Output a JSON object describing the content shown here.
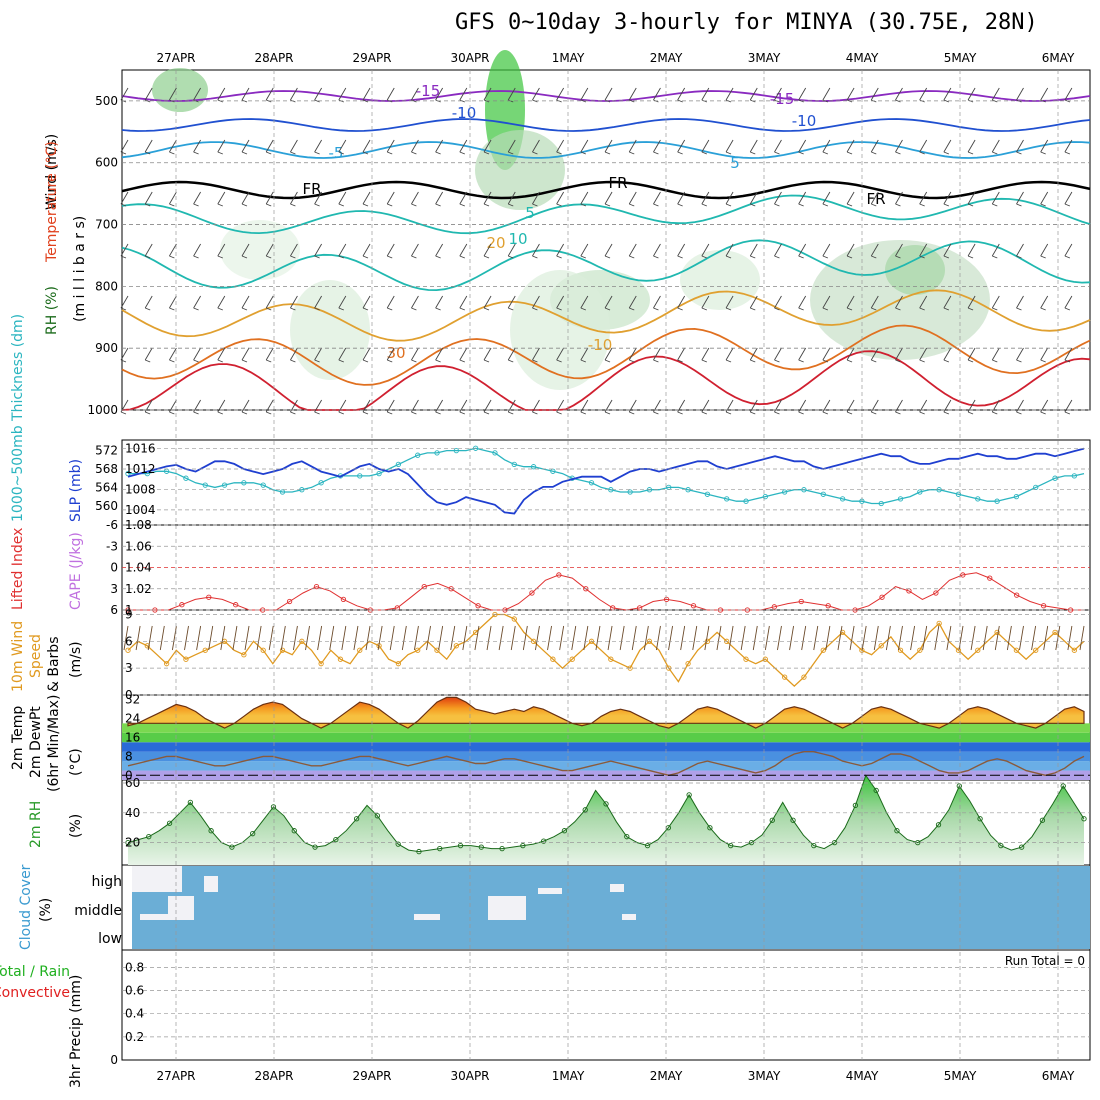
{
  "title": "GFS 0~10day 3-hourly for MINYA (30.75E, 28N)",
  "dates": [
    "27APR",
    "28APR",
    "29APR",
    "30APR",
    "1MAY",
    "2MAY",
    "3MAY",
    "4MAY",
    "5MAY",
    "6MAY"
  ],
  "colors": {
    "slp": "#1f3fd0",
    "thickness": "#2bb5c0",
    "lifted": "#e03030",
    "cape": "#c070e0",
    "wind": "#e09a20",
    "rh2m": "#2a9a2a",
    "cloud": "#6baed6",
    "precip_total": "#20b020",
    "precip_conv": "#e02020"
  },
  "labels": {
    "panel1_wind": "Wind (m/s)",
    "panel1_temp": "Temperature (°C)",
    "panel1_rh": "RH (%)",
    "panel1_mb": "(m i l l i b a r s)",
    "thickness": "1000~500mb Thickness (dm)",
    "slp": "SLP (mb)",
    "lifted": "Lifted Index",
    "cape": "CAPE (J/kg)",
    "wind10": "10m Wind",
    "speed": "Speed",
    "barbs": "& Barbs",
    "ms": "(m/s)",
    "temp2m": "2m Temp",
    "dewpt": "2m DewPt",
    "minmax": "(6hr Min/Max)",
    "degc": "(°C)",
    "rh2m": "2m RH",
    "pct": "(%)",
    "cloud": "Cloud Cover",
    "cloud_pct": "(%)",
    "cloud_high": "high",
    "cloud_middle": "middle",
    "cloud_low": "low",
    "precip": "3hr Precip (mm)",
    "total_rain": "Total / Rain",
    "convective": "Convective",
    "run_total": "Run Total = 0"
  },
  "chart_data": [
    {
      "type": "contour",
      "name": "upper-air",
      "ylabel": "millibars",
      "yticks": [
        500,
        600,
        700,
        800,
        900,
        1000
      ],
      "contour_labels": [
        "-15",
        "-10",
        "-5",
        "FR",
        "5",
        "10",
        "20",
        "30",
        "-15",
        "-10",
        "5",
        "FR",
        "FR",
        "-10",
        "5",
        "20"
      ]
    },
    {
      "type": "line",
      "name": "slp-thickness",
      "slp_ticks": [
        1004,
        1008,
        1012,
        1016
      ],
      "thickness_ticks": [
        560,
        564,
        568,
        572
      ],
      "slp": [
        1010.5,
        1011,
        1011.5,
        1012,
        1012.5,
        1012.8,
        1012,
        1011.5,
        1012.5,
        1013.5,
        1013.5,
        1013,
        1012,
        1011.5,
        1011,
        1011.5,
        1012,
        1013,
        1013.5,
        1012.5,
        1011.5,
        1011,
        1010.5,
        1011.5,
        1012.5,
        1013,
        1012,
        1011.5,
        1012,
        1011,
        1009,
        1007,
        1005.5,
        1005,
        1005.5,
        1006.5,
        1006,
        1005.5,
        1005,
        1003.5,
        1003.3,
        1006,
        1007.5,
        1008.5,
        1008.5,
        1009.5,
        1010,
        1010.5,
        1010.5,
        1010.5,
        1009.5,
        1010.5,
        1011.5,
        1012,
        1012,
        1011.5,
        1012,
        1012.5,
        1013,
        1013.5,
        1013.5,
        1012.5,
        1012,
        1012.5,
        1013,
        1013.5,
        1014,
        1014.5,
        1014,
        1013.5,
        1013.5,
        1012.5,
        1012,
        1012.5,
        1013,
        1013.5,
        1014,
        1014.5,
        1015,
        1014.5,
        1014.5,
        1013.5,
        1013,
        1013,
        1013.5,
        1014,
        1014,
        1014.5,
        1015,
        1014.5,
        1014.5,
        1014,
        1014,
        1014.5,
        1015,
        1015,
        1014.5,
        1015,
        1015.5,
        1016
      ],
      "thickness": [
        567,
        567,
        567,
        567.5,
        567.5,
        567,
        566,
        565,
        564.5,
        564,
        564.5,
        565,
        565,
        565,
        564.5,
        563.5,
        563,
        563,
        563.5,
        564,
        565,
        566,
        566.5,
        566.5,
        566.5,
        566.5,
        567,
        568,
        569,
        570,
        571,
        571.5,
        571.5,
        572,
        572,
        572,
        572.5,
        572,
        571.5,
        570,
        569,
        568.5,
        568.5,
        568,
        567.5,
        567,
        566,
        565.5,
        565,
        564,
        563.5,
        563,
        563,
        563,
        563.5,
        563.5,
        564,
        564,
        563.5,
        563,
        562.5,
        562,
        561.5,
        561,
        561,
        561.5,
        562,
        562.5,
        563,
        563.5,
        563.5,
        563,
        562.5,
        562,
        561.5,
        561,
        561,
        560.5,
        560.5,
        561,
        561.5,
        562,
        563,
        563.5,
        563.5,
        563,
        562.5,
        562,
        561.5,
        561,
        561,
        561.5,
        562,
        563,
        564,
        565,
        566,
        566.5,
        566.5,
        567
      ]
    },
    {
      "type": "line",
      "name": "lifted-cape",
      "lifted_ticks": [
        6,
        3,
        0,
        -3,
        -6
      ],
      "cape_ticks": [
        1,
        1.02,
        1.04,
        1.06,
        1.08
      ],
      "cape": [
        1,
        1,
        1,
        1,
        1.005,
        1.01,
        1.012,
        1.01,
        1.005,
        1,
        1,
        1,
        1.008,
        1.016,
        1.022,
        1.018,
        1.01,
        1.004,
        1,
        1,
        1.002,
        1.012,
        1.022,
        1.025,
        1.02,
        1.012,
        1.004,
        1,
        1,
        1.006,
        1.016,
        1.028,
        1.033,
        1.03,
        1.02,
        1.01,
        1.002,
        1,
        1.002,
        1.008,
        1.01,
        1.008,
        1.004,
        1,
        1,
        1,
        1,
        1,
        1.003,
        1.006,
        1.008,
        1.006,
        1.004,
        1,
        1,
        1.004,
        1.012,
        1.022,
        1.018,
        1.01,
        1.016,
        1.028,
        1.033,
        1.035,
        1.03,
        1.022,
        1.014,
        1.008,
        1.004,
        1.002,
        1,
        1
      ]
    },
    {
      "type": "line",
      "name": "10m-wind",
      "yticks": [
        0,
        3,
        6,
        9
      ],
      "values": [
        5,
        6,
        5.5,
        4.5,
        3.5,
        5,
        4,
        4.5,
        5,
        5.5,
        6,
        5,
        4.5,
        6,
        5,
        3.5,
        5,
        4.5,
        6,
        5,
        3.5,
        5,
        4,
        3.5,
        5,
        6,
        5.5,
        4,
        3.5,
        4.5,
        5,
        6,
        5,
        4,
        5.5,
        6,
        7,
        8,
        9,
        9,
        8.5,
        7,
        6,
        5,
        4,
        3,
        4,
        5,
        6,
        5,
        4,
        3.5,
        3,
        5,
        6,
        5,
        3,
        1.5,
        3.5,
        5,
        6,
        7,
        6,
        5,
        4,
        3.5,
        4,
        3,
        2,
        1,
        2,
        3.5,
        5,
        6,
        7,
        6,
        5,
        4.5,
        5.5,
        6.5,
        5,
        4,
        5,
        7,
        8,
        6,
        5,
        4,
        5,
        6,
        7,
        6,
        5,
        4,
        5,
        6,
        7,
        6,
        5,
        6
      ]
    },
    {
      "type": "area",
      "name": "2m-temp",
      "yticks": [
        0,
        8,
        16,
        24,
        32
      ],
      "temp": [
        21,
        22,
        24,
        26,
        28,
        30,
        29,
        27,
        24,
        22,
        20,
        22,
        25,
        28,
        30,
        31,
        30,
        27,
        24,
        22,
        20,
        22,
        25,
        28,
        31,
        30,
        28,
        25,
        22,
        20,
        23,
        27,
        31,
        33,
        33,
        31,
        28,
        27,
        26,
        27,
        28,
        27,
        29,
        28,
        26,
        24,
        22,
        21,
        22,
        25,
        27,
        28,
        27,
        25,
        23,
        21,
        20,
        22,
        25,
        28,
        29,
        28,
        26,
        24,
        22,
        20,
        22,
        25,
        28,
        29,
        28,
        26,
        24,
        22,
        20,
        22,
        25,
        28,
        29,
        28,
        26,
        24,
        22,
        21,
        20,
        22,
        25,
        28,
        29,
        28,
        26,
        24,
        22,
        21,
        20,
        22,
        25,
        28,
        29,
        27
      ],
      "dewpt": [
        4,
        5,
        6,
        7,
        8,
        8,
        7,
        6,
        5,
        4,
        4,
        5,
        6,
        7,
        8,
        8,
        7,
        6,
        5,
        4,
        4,
        5,
        6,
        7,
        8,
        8,
        7,
        6,
        5,
        4,
        5,
        6,
        7,
        8,
        7,
        6,
        5,
        5,
        6,
        7,
        7,
        6,
        5,
        4,
        3,
        2,
        2,
        3,
        4,
        5,
        6,
        5,
        4,
        3,
        2,
        1,
        0,
        1,
        3,
        5,
        6,
        5,
        4,
        3,
        2,
        1,
        2,
        4,
        7,
        9,
        10,
        10,
        9,
        8,
        6,
        5,
        4,
        5,
        7,
        9,
        9,
        8,
        6,
        4,
        2,
        1,
        1,
        2,
        4,
        6,
        7,
        6,
        4,
        2,
        1,
        0,
        1,
        3,
        6,
        8
      ]
    },
    {
      "type": "area",
      "name": "2m-rh",
      "yticks": [
        20,
        40,
        60
      ],
      "values": [
        20,
        22,
        24,
        28,
        33,
        40,
        47,
        38,
        28,
        20,
        17,
        20,
        26,
        35,
        44,
        38,
        28,
        20,
        17,
        18,
        22,
        28,
        36,
        45,
        38,
        28,
        19,
        15,
        14,
        15,
        16,
        17,
        18,
        18,
        17,
        16,
        16,
        17,
        18,
        19,
        21,
        24,
        28,
        34,
        42,
        55,
        46,
        34,
        24,
        20,
        18,
        22,
        30,
        40,
        52,
        40,
        30,
        22,
        18,
        17,
        20,
        25,
        35,
        47,
        35,
        25,
        18,
        16,
        20,
        30,
        45,
        65,
        55,
        40,
        28,
        22,
        20,
        24,
        32,
        42,
        58,
        48,
        36,
        25,
        18,
        15,
        17,
        24,
        35,
        46,
        58,
        47,
        36
      ]
    },
    {
      "type": "area",
      "name": "cloud-cover",
      "levels": [
        "high",
        "middle",
        "low"
      ]
    },
    {
      "type": "bar",
      "name": "3hr-precip",
      "yticks": [
        0,
        0.2,
        0.4,
        0.6,
        0.8
      ],
      "values": []
    }
  ]
}
